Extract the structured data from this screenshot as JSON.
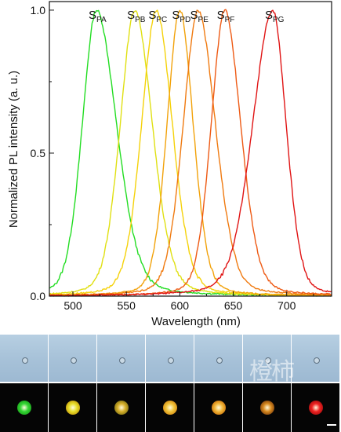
{
  "chart_data": {
    "type": "line",
    "xlabel": "Wavelength (nm)",
    "ylabel": "Normalized PL intensity (a. u.)",
    "xlim": [
      478,
      742
    ],
    "ylim": [
      0,
      1.03
    ],
    "xticks": [
      {
        "value": 500,
        "label": "500"
      },
      {
        "value": 550,
        "label": "550"
      },
      {
        "value": 600,
        "label": "600"
      },
      {
        "value": 650,
        "label": "650"
      },
      {
        "value": 700,
        "label": "700"
      }
    ],
    "yticks": [
      {
        "value": 0.0,
        "label": "0.0"
      },
      {
        "value": 0.5,
        "label": "0.5"
      },
      {
        "value": 1.0,
        "label": "1.0"
      }
    ],
    "series": [
      {
        "name": "SPA",
        "base": "S",
        "sub": "PA",
        "color": "#22dd22",
        "peak": 522,
        "wl": 21,
        "wr": 30,
        "x": [
          478,
          490,
          500,
          510,
          515,
          520,
          522,
          525,
          530,
          540,
          550,
          560,
          575,
          600,
          650,
          700,
          740
        ],
        "y": [
          0.05,
          0.15,
          0.38,
          0.78,
          0.93,
          0.99,
          1.0,
          0.97,
          0.82,
          0.48,
          0.28,
          0.17,
          0.1,
          0.05,
          0.02,
          0.01,
          0.005
        ]
      },
      {
        "name": "SPB",
        "base": "S",
        "sub": "PB",
        "color": "#e0e012",
        "peak": 558,
        "wl": 22,
        "wr": 26,
        "x": [
          478,
          500,
          520,
          540,
          550,
          555,
          558,
          562,
          570,
          580,
          590,
          600,
          620,
          640,
          660,
          700,
          740
        ],
        "y": [
          0.02,
          0.08,
          0.2,
          0.55,
          0.85,
          0.97,
          1.0,
          0.97,
          0.85,
          0.65,
          0.45,
          0.3,
          0.17,
          0.1,
          0.05,
          0.02,
          0.01
        ]
      },
      {
        "name": "SPC",
        "base": "S",
        "sub": "PC",
        "color": "#f5d20a",
        "peak": 578,
        "wl": 22,
        "wr": 24,
        "x": [
          478,
          520,
          540,
          555,
          565,
          572,
          578,
          584,
          590,
          600,
          610,
          620,
          640,
          660,
          700,
          740
        ],
        "y": [
          0.01,
          0.06,
          0.18,
          0.45,
          0.72,
          0.92,
          1.0,
          0.96,
          0.87,
          0.62,
          0.42,
          0.28,
          0.12,
          0.06,
          0.02,
          0.01
        ]
      },
      {
        "name": "SPD",
        "base": "S",
        "sub": "PD",
        "color": "#f2a20a",
        "peak": 600,
        "wl": 19,
        "wr": 20,
        "x": [
          478,
          540,
          560,
          575,
          585,
          592,
          600,
          606,
          612,
          620,
          630,
          640,
          660,
          700,
          740
        ],
        "y": [
          0.005,
          0.02,
          0.08,
          0.28,
          0.6,
          0.88,
          1.0,
          0.94,
          0.8,
          0.55,
          0.32,
          0.18,
          0.06,
          0.02,
          0.01
        ]
      },
      {
        "name": "SPE",
        "base": "S",
        "sub": "PE",
        "color": "#f07a10",
        "peak": 617,
        "wl": 22,
        "wr": 26,
        "x": [
          478,
          560,
          580,
          595,
          605,
          612,
          617,
          622,
          630,
          640,
          655,
          670,
          690,
          720,
          740
        ],
        "y": [
          0.005,
          0.03,
          0.15,
          0.45,
          0.75,
          0.94,
          1.0,
          0.97,
          0.85,
          0.62,
          0.38,
          0.22,
          0.1,
          0.04,
          0.02
        ]
      },
      {
        "name": "SPF",
        "base": "S",
        "sub": "PF",
        "color": "#ee5a14",
        "peak": 642,
        "wl": 20,
        "wr": 24,
        "x": [
          478,
          580,
          600,
          615,
          625,
          635,
          642,
          648,
          655,
          665,
          680,
          700,
          720,
          740
        ],
        "y": [
          0.005,
          0.02,
          0.08,
          0.3,
          0.6,
          0.9,
          1.0,
          0.95,
          0.82,
          0.58,
          0.3,
          0.12,
          0.05,
          0.02
        ]
      },
      {
        "name": "SPG",
        "base": "S",
        "sub": "PG",
        "color": "#e01414",
        "peak": 687,
        "wl": 30,
        "wr": 20,
        "x": [
          478,
          600,
          620,
          640,
          655,
          665,
          675,
          682,
          687,
          692,
          700,
          710,
          720,
          730,
          740
        ],
        "y": [
          0.005,
          0.02,
          0.05,
          0.12,
          0.25,
          0.42,
          0.7,
          0.92,
          1.0,
          0.95,
          0.75,
          0.42,
          0.18,
          0.07,
          0.03
        ]
      }
    ]
  },
  "panels": [
    {
      "id": "PA",
      "color": "#33d633",
      "glow": "#1ea81e"
    },
    {
      "id": "PB",
      "color": "#e8e02a",
      "glow": "#c8a010"
    },
    {
      "id": "PC",
      "color": "#d8b02a",
      "glow": "#8a7a18"
    },
    {
      "id": "PD",
      "color": "#f0c43a",
      "glow": "#d89018"
    },
    {
      "id": "PE",
      "color": "#f2b83a",
      "glow": "#d07a10"
    },
    {
      "id": "PF",
      "color": "#d88a1e",
      "glow": "#8a4a10"
    },
    {
      "id": "PG",
      "color": "#ee2222",
      "glow": "#b01010"
    }
  ],
  "watermark": "橙柿"
}
